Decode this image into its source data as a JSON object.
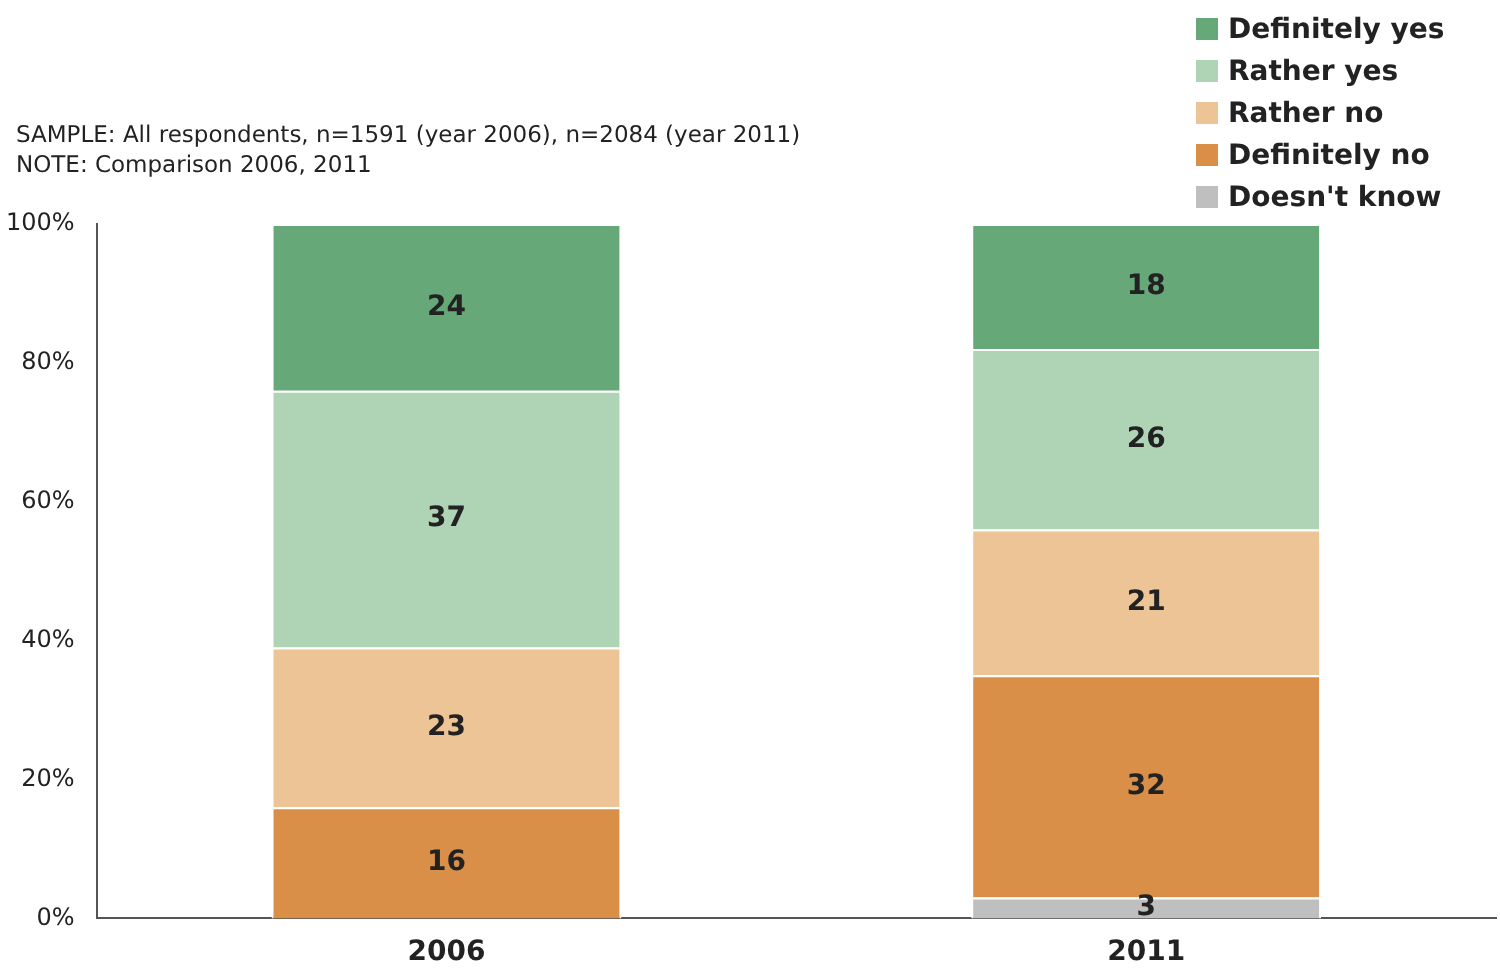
{
  "chart_data": {
    "type": "bar",
    "stacked": true,
    "categories": [
      "2006",
      "2011"
    ],
    "series": [
      {
        "name": "Doesn't know",
        "color": "#bfbfbf",
        "values": [
          null,
          3
        ]
      },
      {
        "name": "Definitely no",
        "color": "#d98f48",
        "values": [
          16,
          32
        ]
      },
      {
        "name": "Rather no",
        "color": "#ecc496",
        "values": [
          23,
          21
        ]
      },
      {
        "name": "Rather yes",
        "color": "#aed3b5",
        "values": [
          37,
          26
        ]
      },
      {
        "name": "Definitely yes",
        "color": "#66a878",
        "values": [
          24,
          18
        ]
      }
    ],
    "ylim": [
      0,
      100
    ],
    "yticks": [
      {
        "value": 0,
        "label": "0%"
      },
      {
        "value": 20,
        "label": "20%"
      },
      {
        "value": 40,
        "label": "40%"
      },
      {
        "value": 60,
        "label": "60%"
      },
      {
        "value": 80,
        "label": "80%"
      },
      {
        "value": 100,
        "label": "100%"
      }
    ],
    "grid": false,
    "legend": "top right",
    "data_labels": true,
    "annotations": [
      "SAMPLE: All respondents, n=1591 (year 2006), n=2084 (year 2011)",
      "NOTE: Comparison 2006, 2011"
    ]
  }
}
